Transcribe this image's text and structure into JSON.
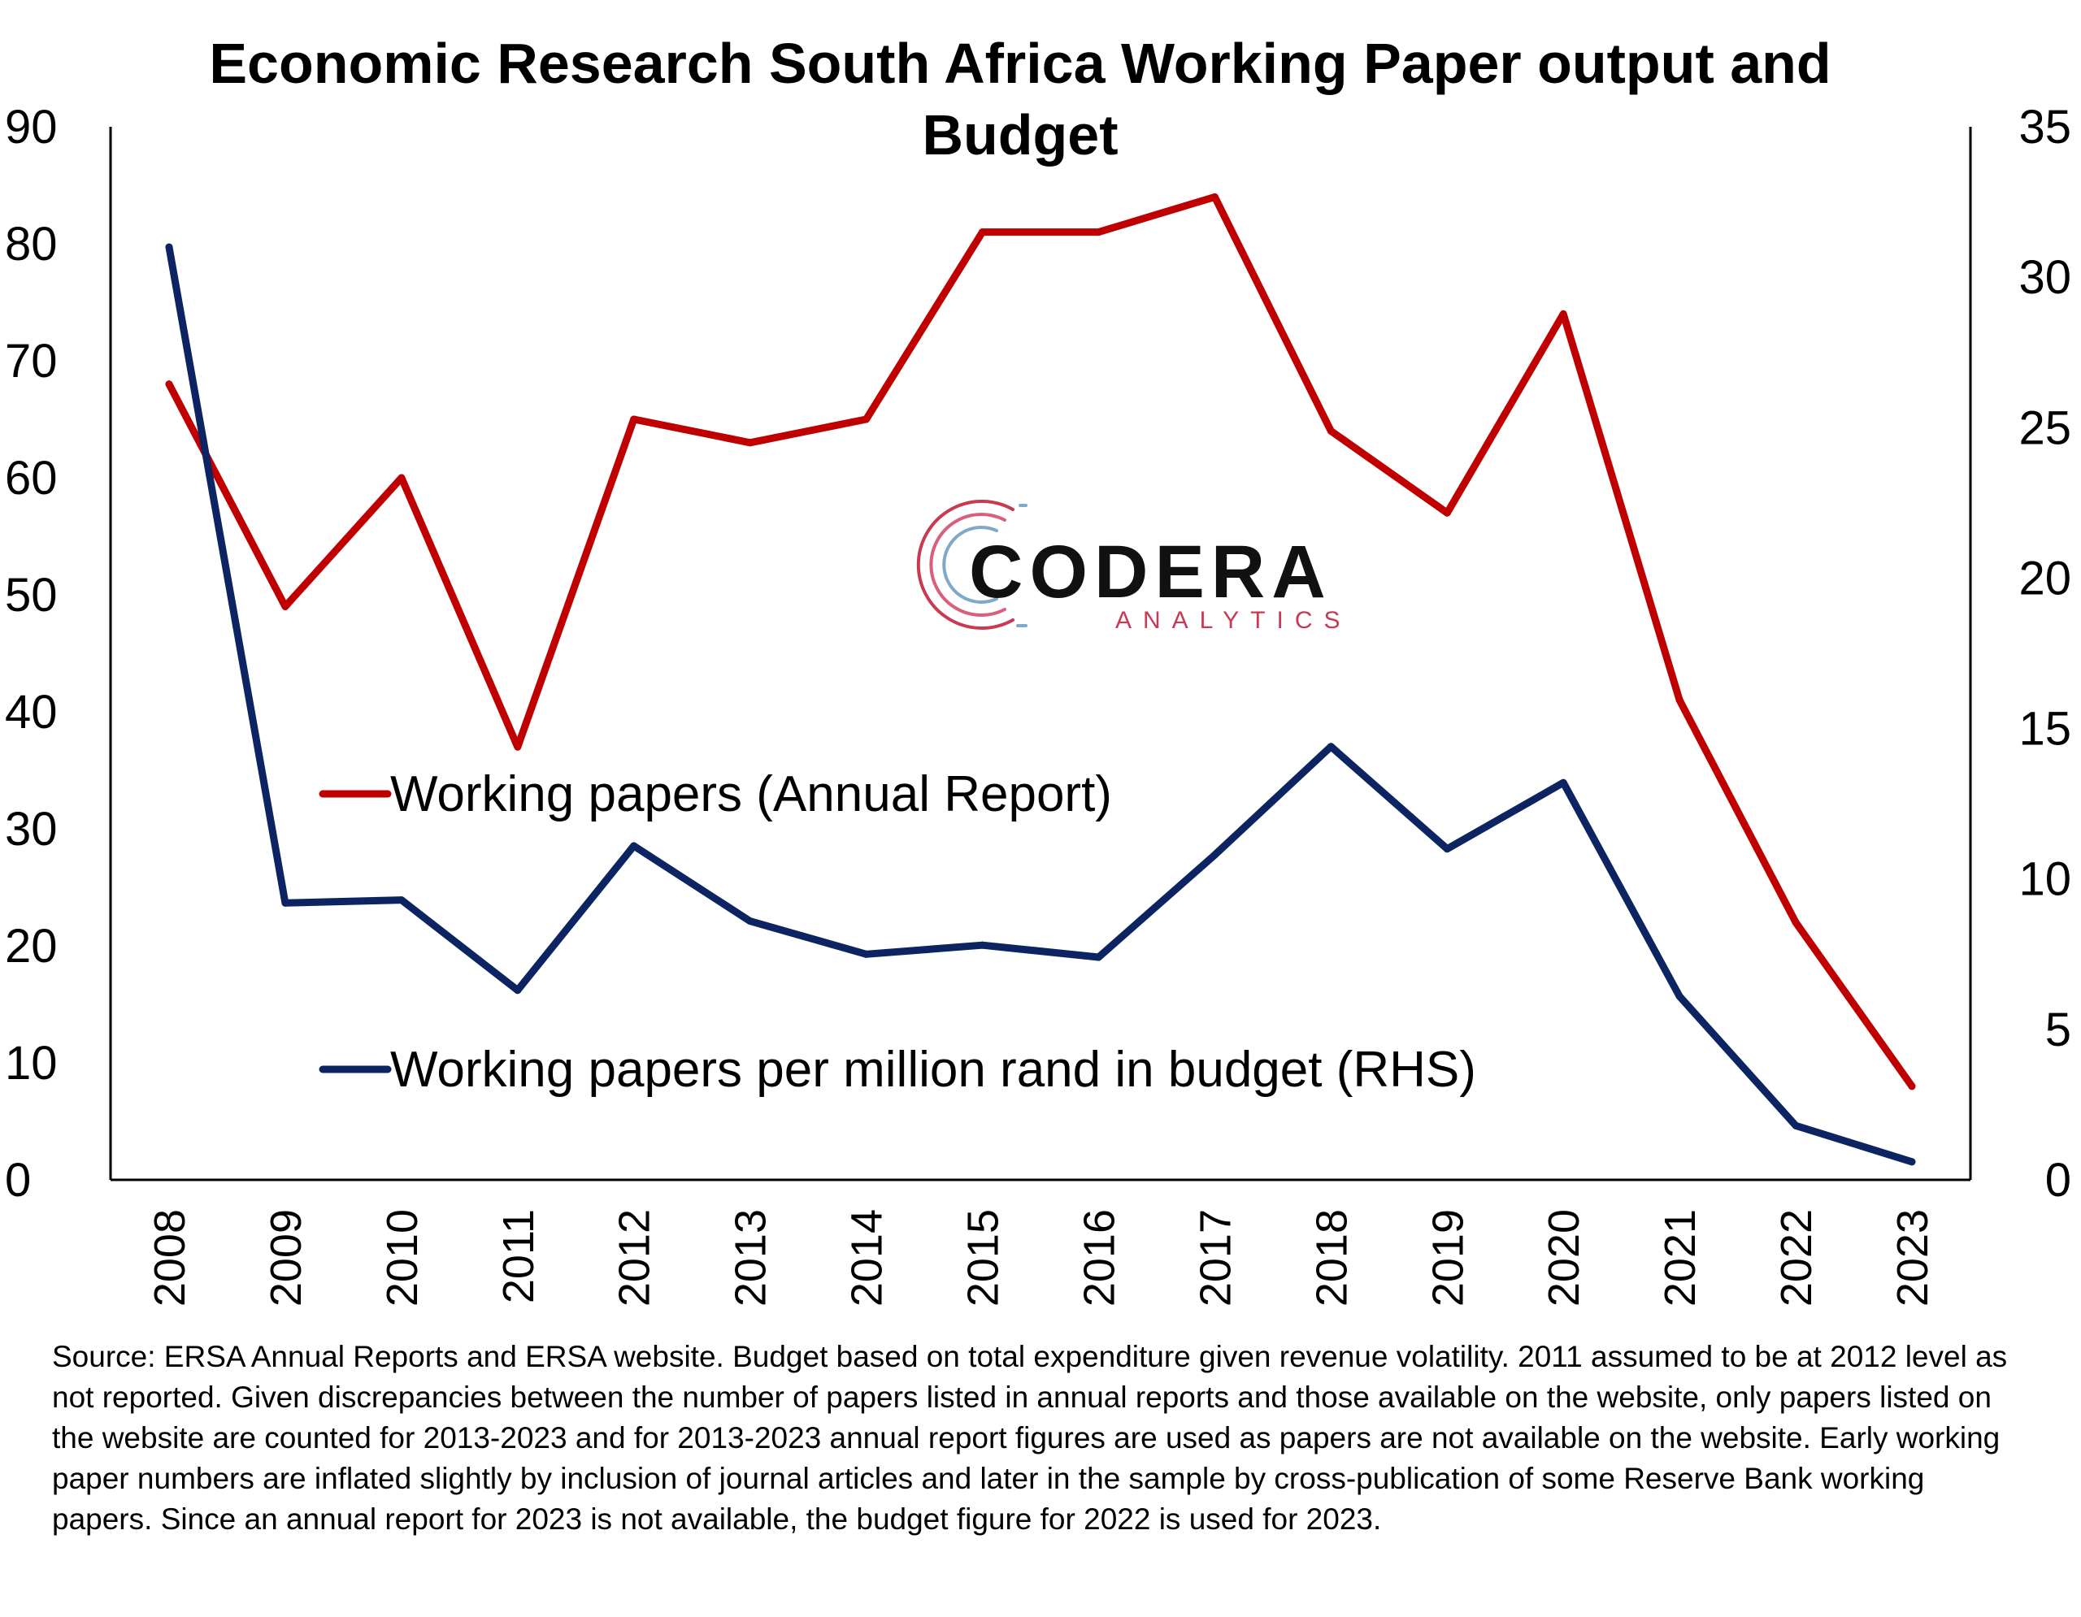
{
  "chart_data": {
    "type": "line",
    "title": "Economic Research South Africa Working Paper output and Budget",
    "categories": [
      "2008",
      "2009",
      "2010",
      "2011",
      "2012",
      "2013",
      "2014",
      "2015",
      "2016",
      "2017",
      "2018",
      "2019",
      "2020",
      "2021",
      "2022",
      "2023"
    ],
    "left_axis": {
      "ylim": [
        0,
        90
      ],
      "ticks": [
        "0",
        "10",
        "20",
        "30",
        "40",
        "50",
        "60",
        "70",
        "80",
        "90"
      ]
    },
    "right_axis": {
      "ylim": [
        0,
        35
      ],
      "ticks": [
        "0",
        "5",
        "10",
        "15",
        "20",
        "25",
        "30",
        "35"
      ]
    },
    "series": [
      {
        "name": "Working papers (Annual Report)",
        "axis": "left",
        "color": "#c00000",
        "values": [
          68,
          49,
          60,
          37,
          65,
          63,
          65,
          81,
          81,
          84,
          64,
          57,
          74,
          41,
          22,
          8
        ]
      },
      {
        "name": "Working papers per million rand in budget (RHS)",
        "axis": "right",
        "color": "#0c2461",
        "values": [
          31,
          9.2,
          9.3,
          6.3,
          11.1,
          8.6,
          7.5,
          7.8,
          7.4,
          10.8,
          14.4,
          11.0,
          13.2,
          6.1,
          1.8,
          0.6
        ]
      }
    ],
    "grid": false,
    "legend": "inside-left"
  },
  "logo": {
    "main": "CODERA",
    "sub": "ANALYTICS"
  },
  "source_note": "Source: ERSA Annual Reports and ERSA website. Budget based on total expenditure given revenue volatility. 2011 assumed to be at 2012 level as not reported. Given discrepancies between the number of papers listed in annual reports and those available on the website, only papers listed on the website are counted for 2013-2023 and for 2013-2023 annual report figures are used as papers are not available on the website. Early working paper numbers are inflated slightly by inclusion of journal articles and later in the sample by cross-publication of some Reserve Bank working papers. Since an annual report for 2023 is not available, the budget figure for 2022 is used for 2023."
}
